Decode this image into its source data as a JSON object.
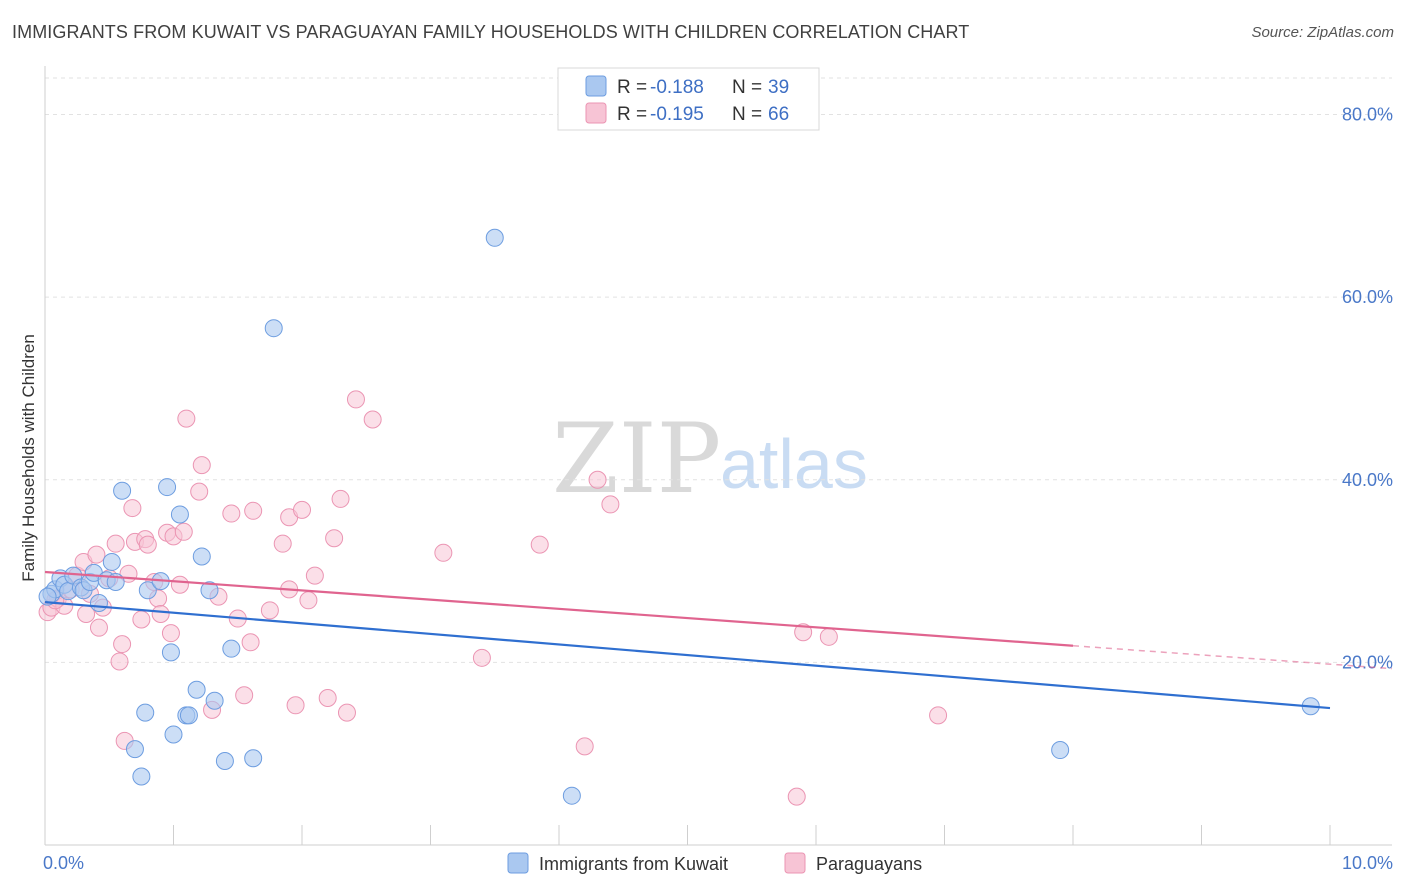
{
  "header": {
    "title": "IMMIGRANTS FROM KUWAIT VS PARAGUAYAN FAMILY HOUSEHOLDS WITH CHILDREN CORRELATION CHART",
    "source": "Source: ZipAtlas.com"
  },
  "watermark": {
    "zip": "ZIP",
    "atlas": "atlas"
  },
  "legend": {
    "r_label": "R =",
    "n_label": "N =",
    "rows": [
      {
        "r": "-0.188",
        "n": "39"
      },
      {
        "r": "-0.195",
        "n": "66"
      }
    ]
  },
  "bottom_legend": [
    "Immigrants from Kuwait",
    "Paraguayans"
  ],
  "colors": {
    "blue_fill": "#aac8f0",
    "blue_stroke": "#6d9de0",
    "blue_line": "#2f6fd0",
    "pink_fill": "#f7c4d5",
    "pink_stroke": "#eb95b3",
    "pink_line": "#e0648f",
    "grid": "#e2e2e2",
    "tick_text": "#4a78c8"
  },
  "chart_data": {
    "type": "scatter",
    "title": "IMMIGRANTS FROM KUWAIT VS PARAGUAYAN FAMILY HOUSEHOLDS WITH CHILDREN CORRELATION CHART",
    "xlabel": "",
    "ylabel": "Family Households with Children",
    "xlim": [
      0,
      10
    ],
    "ylim": [
      0,
      84
    ],
    "x_tick_labels": [
      "0.0%",
      "10.0%"
    ],
    "y_ticks": [
      20,
      40,
      60,
      80
    ],
    "y_tick_labels": [
      "20.0%",
      "40.0%",
      "60.0%",
      "80.0%"
    ],
    "series": [
      {
        "name": "Immigrants from Kuwait",
        "r": -0.188,
        "n": 39,
        "points": [
          [
            0.05,
            27.5
          ],
          [
            0.08,
            28.0
          ],
          [
            0.12,
            29.2
          ],
          [
            0.15,
            28.5
          ],
          [
            0.18,
            27.8
          ],
          [
            0.22,
            29.5
          ],
          [
            0.28,
            28.2
          ],
          [
            0.3,
            27.9
          ],
          [
            0.35,
            28.8
          ],
          [
            0.38,
            29.8
          ],
          [
            0.42,
            26.5
          ],
          [
            0.48,
            29.0
          ],
          [
            0.52,
            31.0
          ],
          [
            0.55,
            28.8
          ],
          [
            0.6,
            38.8
          ],
          [
            0.7,
            10.5
          ],
          [
            0.75,
            7.5
          ],
          [
            0.78,
            14.5
          ],
          [
            0.8,
            27.9
          ],
          [
            0.9,
            28.9
          ],
          [
            0.95,
            39.2
          ],
          [
            0.98,
            21.1
          ],
          [
            1.0,
            12.1
          ],
          [
            1.05,
            36.2
          ],
          [
            1.1,
            14.2
          ],
          [
            1.12,
            14.2
          ],
          [
            1.18,
            17.0
          ],
          [
            1.22,
            31.6
          ],
          [
            1.28,
            27.9
          ],
          [
            1.32,
            15.8
          ],
          [
            1.4,
            9.2
          ],
          [
            1.45,
            21.5
          ],
          [
            1.62,
            9.5
          ],
          [
            1.78,
            56.6
          ],
          [
            3.5,
            66.5
          ],
          [
            4.1,
            5.4
          ],
          [
            7.9,
            10.4
          ],
          [
            9.85,
            15.2
          ],
          [
            0.02,
            27.2
          ]
        ]
      },
      {
        "name": "Paraguayans",
        "r": -0.195,
        "n": 66,
        "points": [
          [
            0.02,
            25.5
          ],
          [
            0.05,
            26.0
          ],
          [
            0.1,
            27.0
          ],
          [
            0.15,
            26.2
          ],
          [
            0.2,
            28.0
          ],
          [
            0.25,
            29.5
          ],
          [
            0.3,
            31.0
          ],
          [
            0.32,
            25.3
          ],
          [
            0.35,
            27.5
          ],
          [
            0.4,
            31.8
          ],
          [
            0.42,
            23.8
          ],
          [
            0.45,
            26.0
          ],
          [
            0.5,
            29.2
          ],
          [
            0.55,
            33.0
          ],
          [
            0.58,
            20.1
          ],
          [
            0.62,
            11.4
          ],
          [
            0.65,
            29.7
          ],
          [
            0.68,
            36.9
          ],
          [
            0.7,
            33.2
          ],
          [
            0.75,
            24.7
          ],
          [
            0.78,
            33.5
          ],
          [
            0.8,
            32.9
          ],
          [
            0.85,
            28.8
          ],
          [
            0.88,
            27.0
          ],
          [
            0.9,
            25.3
          ],
          [
            0.95,
            34.2
          ],
          [
            0.98,
            23.2
          ],
          [
            1.0,
            33.8
          ],
          [
            1.05,
            28.5
          ],
          [
            1.08,
            34.3
          ],
          [
            1.1,
            46.7
          ],
          [
            1.2,
            38.7
          ],
          [
            1.22,
            41.6
          ],
          [
            1.3,
            14.8
          ],
          [
            1.35,
            27.2
          ],
          [
            1.45,
            36.3
          ],
          [
            1.5,
            24.8
          ],
          [
            1.55,
            16.4
          ],
          [
            1.6,
            22.2
          ],
          [
            1.62,
            36.6
          ],
          [
            1.75,
            25.7
          ],
          [
            1.85,
            33.0
          ],
          [
            1.9,
            35.9
          ],
          [
            1.9,
            28.0
          ],
          [
            1.95,
            15.3
          ],
          [
            2.0,
            36.7
          ],
          [
            2.05,
            26.8
          ],
          [
            2.1,
            29.5
          ],
          [
            2.2,
            16.1
          ],
          [
            2.25,
            33.6
          ],
          [
            2.3,
            37.9
          ],
          [
            2.35,
            14.5
          ],
          [
            2.42,
            48.8
          ],
          [
            2.55,
            46.6
          ],
          [
            3.1,
            32.0
          ],
          [
            3.4,
            20.5
          ],
          [
            3.85,
            32.9
          ],
          [
            4.2,
            10.8
          ],
          [
            4.3,
            40.0
          ],
          [
            4.4,
            37.3
          ],
          [
            5.85,
            5.3
          ],
          [
            5.9,
            23.3
          ],
          [
            6.1,
            22.8
          ],
          [
            6.95,
            14.2
          ],
          [
            0.08,
            26.8
          ],
          [
            0.6,
            22.0
          ]
        ]
      }
    ],
    "trend_lines": [
      {
        "name": "Immigrants from Kuwait",
        "x": [
          0.0,
          10.0
        ],
        "y": [
          26.6,
          15.0
        ]
      },
      {
        "name": "Paraguayans",
        "x": [
          0.0,
          10.5
        ],
        "y": [
          29.9,
          19.3
        ],
        "solid_until_x": 8.0
      }
    ]
  }
}
